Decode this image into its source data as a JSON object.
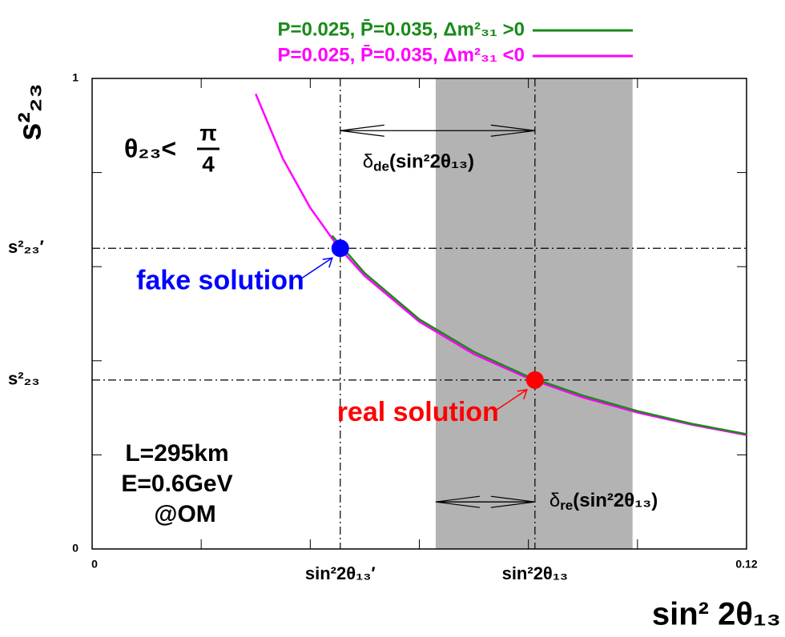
{
  "chart_data": {
    "type": "line",
    "legend": [
      {
        "label": "P=0.025,  P̄=0.035, Δm²₃₁ >0",
        "color": "#1a8a1a"
      },
      {
        "label": "P=0.025,  P̄=0.035, Δm²₃₁ <0",
        "color": "#ff00ff"
      }
    ],
    "x_label": "sin² 2θ₁₃",
    "y_label": "s²₂₃",
    "xlim": [
      0,
      0.12
    ],
    "ylim": [
      0,
      1
    ],
    "xticks": [
      0,
      0.12
    ],
    "yticks": [
      0,
      1
    ],
    "xminorticks": [
      0.02,
      0.04,
      0.06,
      0.08,
      0.1
    ],
    "yminorticks": [
      0.2,
      0.4,
      0.6,
      0.8
    ],
    "series": [
      {
        "name": "Δm²₃₁ >0",
        "color": "#1a8a1a",
        "x": [
          0.044,
          0.05,
          0.06,
          0.07,
          0.08,
          0.09,
          0.1,
          0.11,
          0.12
        ],
        "values": [
          0.666,
          0.586,
          0.488,
          0.419,
          0.366,
          0.326,
          0.293,
          0.266,
          0.244
        ]
      },
      {
        "name": "Δm²₃₁ <0",
        "color": "#ff00ff",
        "x": [
          0.03,
          0.035,
          0.04,
          0.045,
          0.05,
          0.06,
          0.07,
          0.08,
          0.09,
          0.1,
          0.11,
          0.12
        ],
        "values": [
          0.967,
          0.829,
          0.725,
          0.644,
          0.58,
          0.483,
          0.414,
          0.3625,
          0.322,
          0.29,
          0.264,
          0.242
        ]
      }
    ],
    "band": [
      0.063,
      0.0991
    ],
    "band_color": "#b3b3b3",
    "x_ref_lines": [
      {
        "value": 0.0455,
        "label": "sin²2θ₁₃′"
      },
      {
        "value": 0.0812,
        "label": "sin²2θ₁₃"
      }
    ],
    "y_ref_lines": [
      {
        "value": 0.639,
        "label": "s²₂₃′"
      },
      {
        "value": 0.359,
        "label": "s²₂₃"
      }
    ],
    "points": [
      {
        "x": 0.0455,
        "y": 0.639,
        "color": "#0000ff",
        "label": "fake solution"
      },
      {
        "x": 0.0812,
        "y": 0.359,
        "color": "#ff0000",
        "label": "real solution"
      }
    ],
    "arrows": [
      {
        "x": [
          0.0455,
          0.0812
        ],
        "y": 0.889,
        "symbol": "δ",
        "sub": "de",
        "rest": "(sin²2θ₁₃)"
      },
      {
        "x": [
          0.063,
          0.0812
        ],
        "y": 0.1,
        "symbol": "δ",
        "sub": "re",
        "rest": "(sin²2θ₁₃)"
      }
    ],
    "theta_label": "θ₂₃<",
    "theta_num": "π",
    "theta_den": "4",
    "notes": [
      "L=295km",
      "E=0.6GeV",
      "@OM"
    ]
  }
}
